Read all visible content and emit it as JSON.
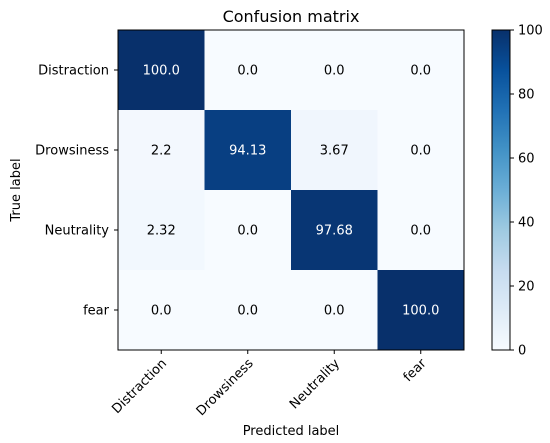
{
  "chart_data": {
    "type": "heatmap",
    "title": "Confusion matrix",
    "xlabel": "Predicted label",
    "ylabel": "True label",
    "x_categories": [
      "Distraction",
      "Drowsiness",
      "Neutrality",
      "fear"
    ],
    "y_categories": [
      "Distraction",
      "Drowsiness",
      "Neutrality",
      "fear"
    ],
    "values": [
      [
        100.0,
        0.0,
        0.0,
        0.0
      ],
      [
        2.2,
        94.13,
        3.67,
        0.0
      ],
      [
        2.32,
        0.0,
        97.68,
        0.0
      ],
      [
        0.0,
        0.0,
        0.0,
        100.0
      ]
    ],
    "cell_labels": [
      [
        "100.0",
        "0.0",
        "0.0",
        "0.0"
      ],
      [
        "2.2",
        "94.13",
        "3.67",
        "0.0"
      ],
      [
        "2.32",
        "0.0",
        "97.68",
        "0.0"
      ],
      [
        "0.0",
        "0.0",
        "0.0",
        "100.0"
      ]
    ],
    "colormap": "Blues",
    "colorbar": {
      "range": [
        0,
        100
      ],
      "ticks": [
        0,
        20,
        40,
        60,
        80,
        100
      ],
      "tick_labels": [
        "0",
        "20",
        "40",
        "60",
        "80",
        "100"
      ]
    },
    "colors": {
      "low": "#f7fbff",
      "high": "#08306b",
      "text_dark": "#000000",
      "text_light": "#ffffff"
    }
  }
}
